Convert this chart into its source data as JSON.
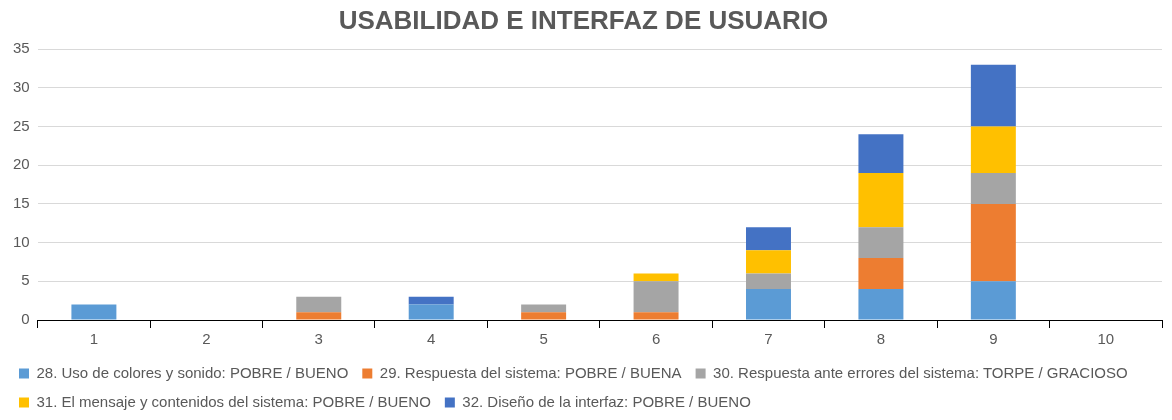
{
  "chart_data": {
    "type": "bar",
    "title": "USABILIDAD E INTERFAZ DE USUARIO",
    "categories": [
      "1",
      "2",
      "3",
      "4",
      "5",
      "6",
      "7",
      "8",
      "9",
      "10"
    ],
    "stacked": true,
    "series": [
      {
        "name": "28. Uso de colores y sonido: POBRE / BUENO",
        "color": "#5b9bd5",
        "values": [
          2,
          0,
          0,
          2,
          0,
          0,
          4,
          4,
          5,
          0
        ]
      },
      {
        "name": "29. Respuesta del sistema: POBRE / BUENA",
        "color": "#ed7d31",
        "values": [
          0,
          0,
          1,
          0,
          1,
          1,
          0,
          4,
          10,
          0
        ]
      },
      {
        "name": "30. Respuesta ante errores del sistema: TORPE / GRACIOSO",
        "color": "#a5a5a5",
        "values": [
          0,
          0,
          2,
          0,
          1,
          4,
          2,
          4,
          4,
          0
        ]
      },
      {
        "name": "31. El mensaje y contenidos del sistema: POBRE / BUENO",
        "color": "#ffc000",
        "values": [
          0,
          0,
          0,
          0,
          0,
          1,
          3,
          7,
          6,
          0
        ]
      },
      {
        "name": "32. Diseño de la interfaz: POBRE / BUENO",
        "color": "#4472c4",
        "values": [
          0,
          0,
          0,
          1,
          0,
          0,
          3,
          5,
          8,
          0
        ]
      }
    ],
    "ylim": [
      0,
      35
    ],
    "yticks": [
      0,
      5,
      10,
      15,
      20,
      25,
      30,
      35
    ],
    "grid": "y",
    "legend": "bottom"
  }
}
